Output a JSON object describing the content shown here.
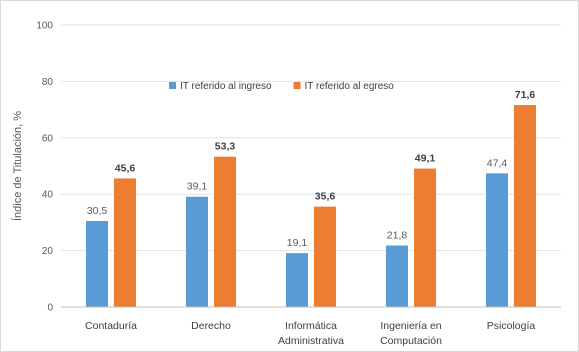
{
  "chart_data": {
    "type": "bar",
    "title": "",
    "xlabel": "",
    "ylabel": "Índice de Titulación, %",
    "ylim": [
      0,
      100
    ],
    "yticks": [
      0,
      20,
      40,
      60,
      80,
      100
    ],
    "grid": true,
    "legend_position": "top",
    "categories": [
      [
        "Contaduría"
      ],
      [
        "Derecho"
      ],
      [
        "Informática",
        "Administrativa"
      ],
      [
        "Ingeniería en",
        "Computación"
      ],
      [
        "Psicología"
      ]
    ],
    "series": [
      {
        "name": "IT referido al ingreso",
        "color": "#5b9bd5",
        "values": [
          30.5,
          39.1,
          19.1,
          21.8,
          47.4
        ],
        "labels": [
          "30,5",
          "39,1",
          "19,1",
          "21,8",
          "47,4"
        ]
      },
      {
        "name": "IT referido al egreso",
        "color": "#ed7d31",
        "values": [
          45.6,
          53.3,
          35.6,
          49.1,
          71.6
        ],
        "labels": [
          "45,6",
          "53,3",
          "35,6",
          "49,1",
          "71,6"
        ]
      }
    ]
  }
}
